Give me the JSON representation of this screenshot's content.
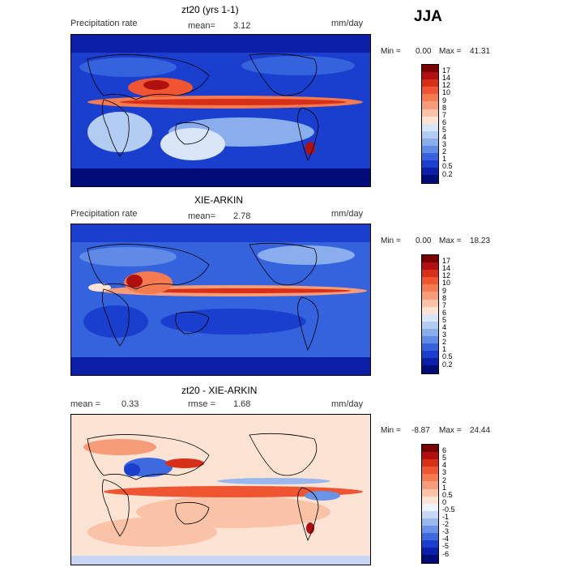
{
  "season": "JJA",
  "panels": [
    {
      "title": "zt20 (yrs 1-1)",
      "left_label": "Precipitation rate",
      "mean_label": "mean=",
      "mean_value": "3.12",
      "units": "mm/day",
      "min_label": "Min =",
      "min_value": "0.00",
      "max_label": "Max =",
      "max_value": "41.31",
      "colorbar_levels": [
        "17",
        "14",
        "12",
        "10",
        "9",
        "8",
        "7",
        "6",
        "5",
        "4",
        "3",
        "2",
        "1",
        "0.5",
        "0.2"
      ],
      "colors": [
        "#7a0000",
        "#b01010",
        "#d83018",
        "#ee5530",
        "#f47a50",
        "#f79c78",
        "#fac2a6",
        "#fde3d3",
        "#d8e6f8",
        "#b3ccf2",
        "#8aaeec",
        "#5f8ae6",
        "#3563dd",
        "#1a3fcf",
        "#0b1fa8",
        "#020c78"
      ]
    },
    {
      "title": "XIE-ARKIN",
      "left_label": "Precipitation rate",
      "mean_label": "mean=",
      "mean_value": "2.78",
      "units": "mm/day",
      "min_label": "Min =",
      "min_value": "0.00",
      "max_label": "Max =",
      "max_value": "18.23",
      "colorbar_levels": [
        "17",
        "14",
        "12",
        "10",
        "9",
        "8",
        "7",
        "6",
        "5",
        "4",
        "3",
        "2",
        "1",
        "0.5",
        "0.2"
      ],
      "colors": [
        "#7a0000",
        "#b01010",
        "#d83018",
        "#ee5530",
        "#f47a50",
        "#f79c78",
        "#fac2a6",
        "#fde3d3",
        "#d8e6f8",
        "#b3ccf2",
        "#8aaeec",
        "#5f8ae6",
        "#3563dd",
        "#1a3fcf",
        "#0b1fa8",
        "#020c78"
      ]
    },
    {
      "title": "zt20 - XIE-ARKIN",
      "mean_label": "mean =",
      "mean_value": "0.33",
      "rmse_label": "rmse =",
      "rmse_value": "1.68",
      "units": "mm/day",
      "min_label": "Min =",
      "min_value": "-8.87",
      "max_label": "Max =",
      "max_value": "24.44",
      "colorbar_levels": [
        "6",
        "5",
        "4",
        "3",
        "2",
        "1",
        "0.5",
        "0",
        "-0.5",
        "-1",
        "-2",
        "-3",
        "-4",
        "-5",
        "-6"
      ],
      "colors": [
        "#7a0000",
        "#b01010",
        "#d83018",
        "#ee5530",
        "#f47a50",
        "#f79c78",
        "#fac2a6",
        "#fde3d3",
        "#eef4fc",
        "#c6d8f5",
        "#9ab8ee",
        "#6a92e6",
        "#3d6ade",
        "#1a3fcf",
        "#0b1fa8",
        "#020c78"
      ]
    }
  ],
  "chart_data": [
    {
      "type": "heatmap",
      "title": "zt20 (yrs 1-1)",
      "subtitle": "Precipitation rate",
      "units": "mm/day",
      "mean": 3.12,
      "min": 0.0,
      "max": 41.31,
      "levels": [
        0.2,
        0.5,
        1,
        2,
        3,
        4,
        5,
        6,
        7,
        8,
        9,
        10,
        12,
        14,
        17
      ]
    },
    {
      "type": "heatmap",
      "title": "XIE-ARKIN",
      "subtitle": "Precipitation rate",
      "units": "mm/day",
      "mean": 2.78,
      "min": 0.0,
      "max": 18.23,
      "levels": [
        0.2,
        0.5,
        1,
        2,
        3,
        4,
        5,
        6,
        7,
        8,
        9,
        10,
        12,
        14,
        17
      ]
    },
    {
      "type": "heatmap",
      "title": "zt20 - XIE-ARKIN",
      "units": "mm/day",
      "mean": 0.33,
      "rmse": 1.68,
      "min": -8.87,
      "max": 24.44,
      "levels": [
        -6,
        -5,
        -4,
        -3,
        -2,
        -1,
        -0.5,
        0,
        0.5,
        1,
        2,
        3,
        4,
        5,
        6
      ]
    }
  ]
}
